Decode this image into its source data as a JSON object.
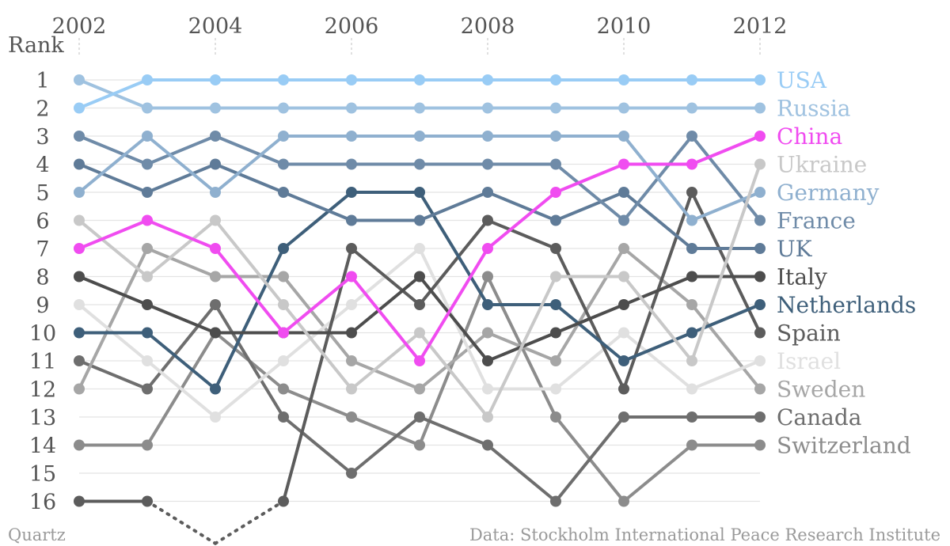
{
  "brand": "Quartz",
  "source": "Data: Stockholm International Peace Research Institute",
  "chart_data": {
    "type": "line",
    "subtype": "bump-chart",
    "title": "",
    "ylabel": "Rank",
    "xlabel": "",
    "x": [
      2002,
      2003,
      2004,
      2005,
      2006,
      2007,
      2008,
      2009,
      2010,
      2011,
      2012
    ],
    "x_tick_labels": [
      "2002",
      "2004",
      "2006",
      "2008",
      "2010",
      "2012"
    ],
    "x_ticks": [
      2002,
      2004,
      2006,
      2008,
      2010,
      2012
    ],
    "y_tick_labels": [
      "1",
      "2",
      "3",
      "4",
      "5",
      "6",
      "7",
      "8",
      "9",
      "10",
      "11",
      "12",
      "13",
      "14",
      "15",
      "16"
    ],
    "ylim": [
      1,
      16
    ],
    "y_reversed": true,
    "grid": "horizontal",
    "legend": "right end labels",
    "series": [
      {
        "name": "USA",
        "color": "#99ccf5",
        "values": [
          2,
          1,
          1,
          1,
          1,
          1,
          1,
          1,
          1,
          1,
          1
        ]
      },
      {
        "name": "Russia",
        "color": "#9fc2e0",
        "values": [
          1,
          2,
          2,
          2,
          2,
          2,
          2,
          2,
          2,
          2,
          2
        ]
      },
      {
        "name": "China",
        "color": "#f04cf0",
        "values": [
          7,
          6,
          7,
          10,
          8,
          11,
          7,
          5,
          4,
          4,
          3
        ]
      },
      {
        "name": "Ukraine",
        "color": "#c8c8c8",
        "values": [
          6,
          8,
          6,
          9,
          12,
          10,
          13,
          8,
          8,
          11,
          4
        ]
      },
      {
        "name": "Germany",
        "color": "#8fb0cf",
        "values": [
          5,
          3,
          5,
          3,
          3,
          3,
          3,
          3,
          3,
          6,
          5
        ]
      },
      {
        "name": "France",
        "color": "#6f8ba8",
        "values": [
          3,
          4,
          3,
          4,
          4,
          4,
          4,
          4,
          6,
          3,
          6
        ]
      },
      {
        "name": "UK",
        "color": "#5f7b98",
        "values": [
          4,
          5,
          4,
          5,
          6,
          6,
          5,
          6,
          5,
          7,
          7
        ]
      },
      {
        "name": "Italy",
        "color": "#4d4d4d",
        "values": [
          8,
          9,
          10,
          10,
          10,
          8,
          11,
          10,
          9,
          8,
          8
        ]
      },
      {
        "name": "Netherlands",
        "color": "#3e5f7a",
        "values": [
          10,
          10,
          12,
          7,
          5,
          5,
          9,
          9,
          11,
          10,
          9
        ]
      },
      {
        "name": "Spain",
        "color": "#5c5c5c",
        "values": [
          16,
          16,
          17.5,
          16,
          7,
          9,
          6,
          7,
          12,
          5,
          10
        ]
      },
      {
        "name": "Israel",
        "color": "#e0e0e0",
        "values": [
          9,
          11,
          13,
          11,
          9,
          7,
          12,
          12,
          10,
          12,
          11
        ]
      },
      {
        "name": "Sweden",
        "color": "#a6a6a6",
        "values": [
          12,
          7,
          8,
          8,
          11,
          12,
          10,
          11,
          7,
          9,
          12
        ]
      },
      {
        "name": "Canada",
        "color": "#6e6e6e",
        "values": [
          11,
          12,
          9,
          13,
          15,
          13,
          14,
          16,
          13,
          13,
          13
        ]
      },
      {
        "name": "Switzerland",
        "color": "#8c8c8c",
        "values": [
          14,
          14,
          10,
          12,
          13,
          14,
          8,
          13,
          16,
          14,
          14
        ]
      }
    ]
  }
}
